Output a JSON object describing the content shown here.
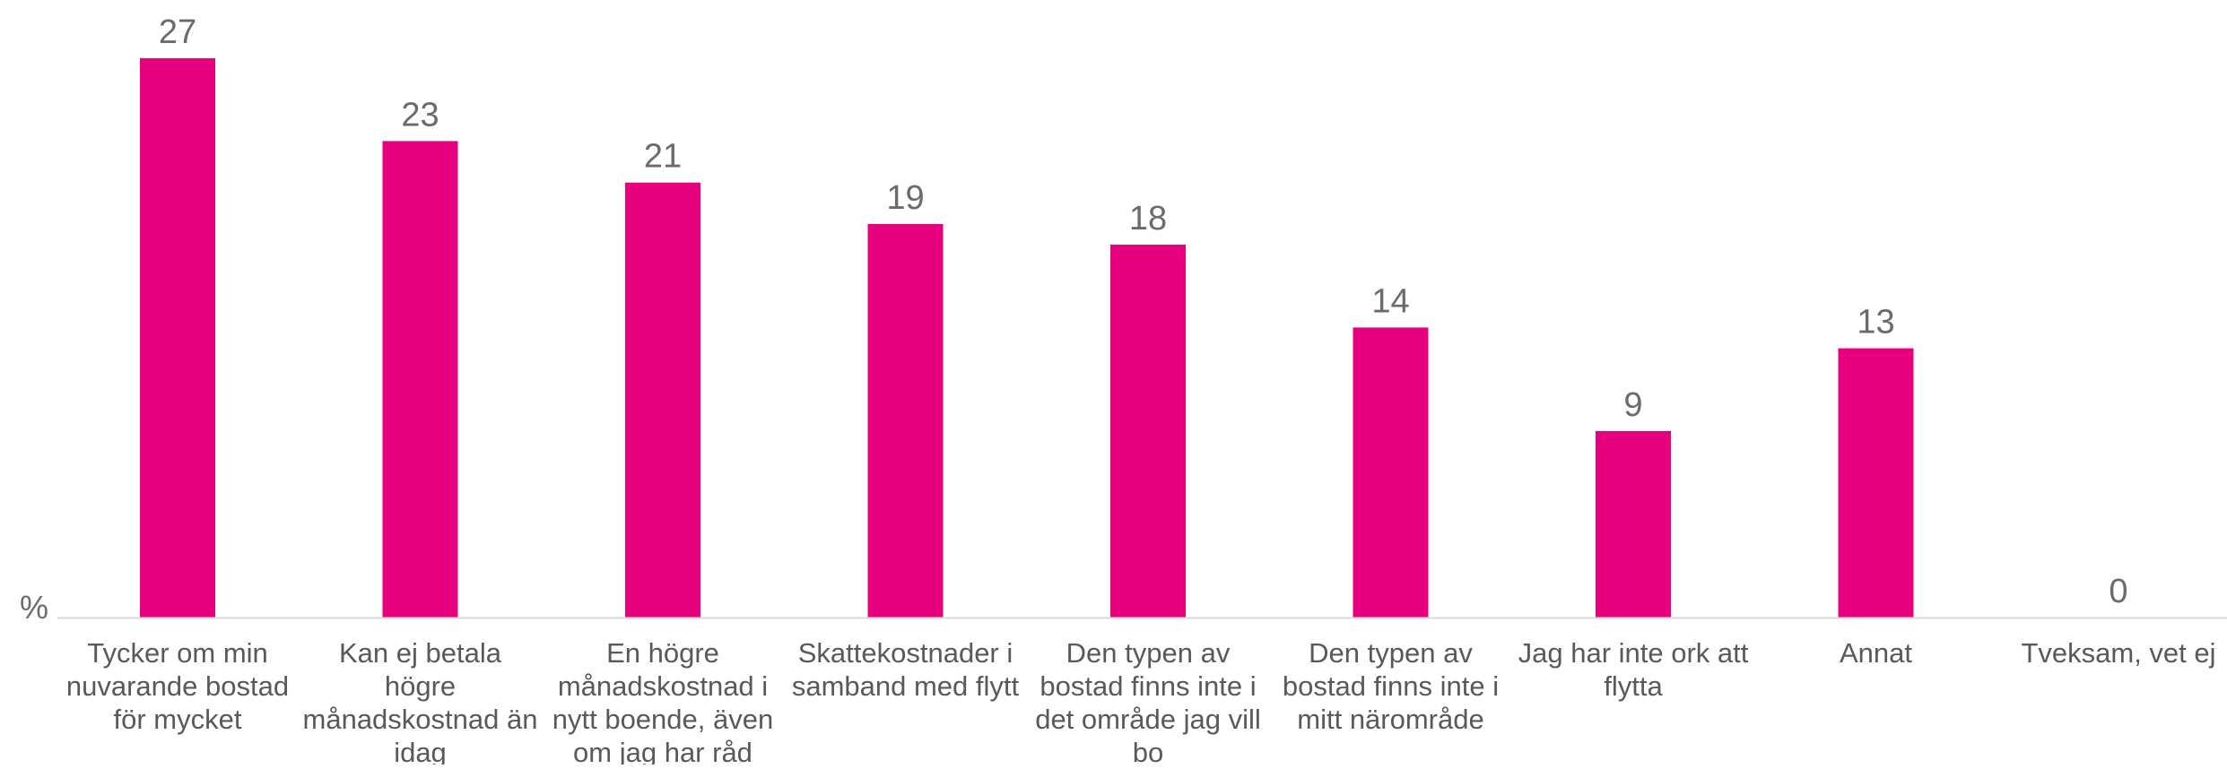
{
  "chart_data": {
    "type": "bar",
    "unit_label": "%",
    "categories": [
      [
        "Tycker om min",
        "nuvarande bostad",
        "för mycket"
      ],
      [
        "Kan ej betala",
        "högre",
        "månadskostnad än",
        "idag"
      ],
      [
        "En högre",
        "månadskostnad i",
        "nytt boende, även",
        "om jag har råd"
      ],
      [
        "Skattekostnader i",
        "samband med flytt"
      ],
      [
        "Den typen av",
        "bostad finns inte i",
        "det område jag vill",
        "bo"
      ],
      [
        "Den typen av",
        "bostad finns inte i",
        "mitt närområde"
      ],
      [
        "Jag har inte ork att",
        "flytta"
      ],
      [
        "Annat"
      ],
      [
        "Tveksam, vet ej"
      ]
    ],
    "values": [
      27,
      23,
      21,
      19,
      18,
      14,
      9,
      13,
      0
    ],
    "value_labels": [
      "27",
      "23",
      "21",
      "19",
      "18",
      "14",
      "9",
      "13",
      "0"
    ],
    "ylim": [
      0,
      27
    ],
    "grid": false,
    "legend": "none",
    "colors": {
      "bar": "#E6007E",
      "axis": "#d9d9d9",
      "label": "#595959"
    }
  }
}
